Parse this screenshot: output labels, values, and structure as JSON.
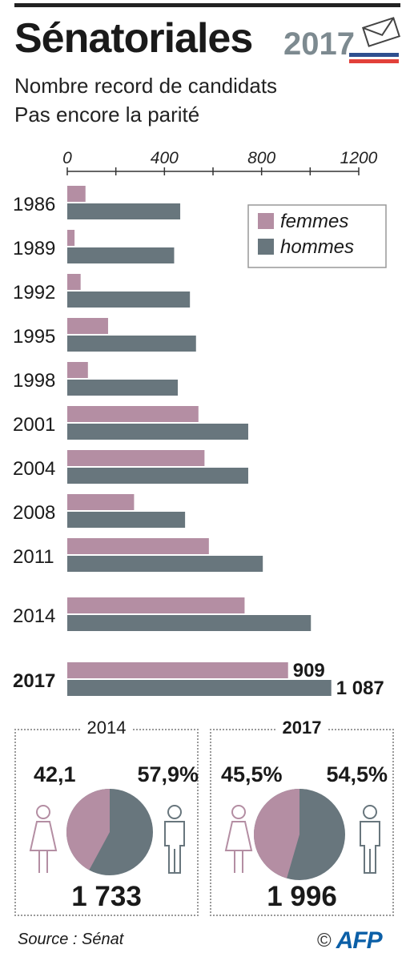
{
  "header": {
    "title": "Sénatoriales",
    "badge_year": "2017",
    "subtitle_line1": "Nombre record de candidats",
    "subtitle_line2": "Pas encore la parité"
  },
  "colors": {
    "femmes": "#b48ea3",
    "hommes": "#68767d",
    "accent_blue": "#2f4f8f",
    "accent_red": "#e2403a"
  },
  "chart_data": {
    "type": "bar",
    "orientation": "horizontal",
    "categories": [
      "1986",
      "1989",
      "1992",
      "1995",
      "1998",
      "2001",
      "2004",
      "2008",
      "2011",
      "2014",
      "2017"
    ],
    "highlight_category": "2017",
    "series": [
      {
        "name": "femmes",
        "values": [
          75,
          30,
          55,
          168,
          85,
          540,
          565,
          275,
          583,
          730,
          909
        ]
      },
      {
        "name": "hommes",
        "values": [
          465,
          440,
          505,
          530,
          455,
          745,
          745,
          485,
          805,
          1003,
          1087
        ]
      }
    ],
    "xlim": [
      0,
      1200
    ],
    "x_ticks": [
      "0",
      "400",
      "800",
      "1200"
    ],
    "data_labels": {
      "femmes_2017": "909",
      "hommes_2017": "1 087"
    },
    "legend_position": "top-right"
  },
  "donut_2014": {
    "year": "2014",
    "femmes_pct_label": "42,1",
    "hommes_pct_label": "57,9%",
    "femmes_share": 42.1,
    "total": "1 733"
  },
  "donut_2017": {
    "year": "2017",
    "femmes_pct_label": "45,5%",
    "hommes_pct_label": "54,5%",
    "femmes_share": 45.5,
    "total": "1 996"
  },
  "footer": {
    "source": "Source : Sénat",
    "copyright": "©",
    "agency": "AFP"
  }
}
